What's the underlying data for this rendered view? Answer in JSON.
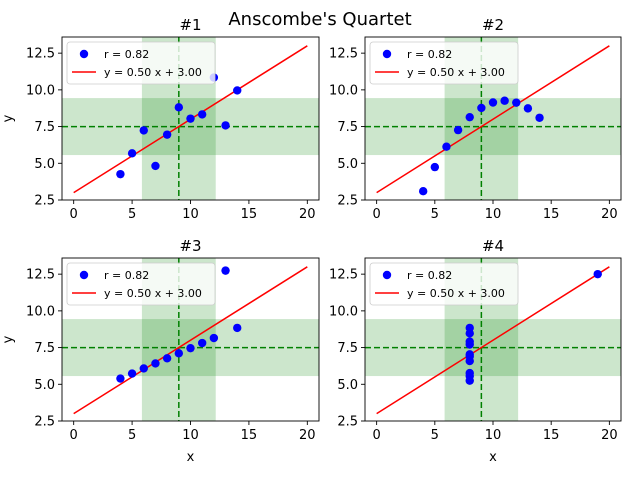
{
  "figure": {
    "suptitle": "Anscombe's Quartet"
  },
  "colors": {
    "points": "#0000ff",
    "fit_line": "#ff0000",
    "mean_lines": "#008000",
    "std_band": "#008000"
  },
  "chart_data": [
    {
      "type": "scatter",
      "title": "#1",
      "xlabel": "",
      "ylabel": "y",
      "xlim": [
        -1,
        21
      ],
      "ylim": [
        2.5,
        13.6
      ],
      "xticks": [
        0,
        5,
        10,
        15,
        20
      ],
      "yticks": [
        2.5,
        5.0,
        7.5,
        10.0,
        12.5
      ],
      "x": [
        10,
        8,
        13,
        9,
        11,
        14,
        6,
        4,
        12,
        7,
        5
      ],
      "y": [
        8.04,
        6.95,
        7.58,
        8.81,
        8.33,
        9.96,
        7.24,
        4.26,
        10.84,
        4.82,
        5.68
      ],
      "fit": {
        "slope": 0.5,
        "intercept": 3.0,
        "x_range": [
          0,
          20
        ]
      },
      "mean_x": 9.0,
      "std_x": 3.16,
      "mean_y": 7.5,
      "std_y": 1.94,
      "legend": [
        "r = 0.82",
        "y = 0.50 x + 3.00"
      ],
      "legend_loc": "upper left"
    },
    {
      "type": "scatter",
      "title": "#2",
      "xlabel": "",
      "ylabel": "",
      "xlim": [
        -1,
        21
      ],
      "ylim": [
        2.5,
        13.6
      ],
      "xticks": [
        0,
        5,
        10,
        15,
        20
      ],
      "yticks": [
        2.5,
        5.0,
        7.5,
        10.0,
        12.5
      ],
      "x": [
        10,
        8,
        13,
        9,
        11,
        14,
        6,
        4,
        12,
        7,
        5
      ],
      "y": [
        9.14,
        8.14,
        8.74,
        8.77,
        9.26,
        8.1,
        6.13,
        3.1,
        9.13,
        7.26,
        4.74
      ],
      "fit": {
        "slope": 0.5,
        "intercept": 3.0,
        "x_range": [
          0,
          20
        ]
      },
      "mean_x": 9.0,
      "std_x": 3.16,
      "mean_y": 7.5,
      "std_y": 1.94,
      "legend": [
        "r = 0.82",
        "y = 0.50 x + 3.00"
      ],
      "legend_loc": "upper left"
    },
    {
      "type": "scatter",
      "title": "#3",
      "xlabel": "x",
      "ylabel": "y",
      "xlim": [
        -1,
        21
      ],
      "ylim": [
        2.5,
        13.6
      ],
      "xticks": [
        0,
        5,
        10,
        15,
        20
      ],
      "yticks": [
        2.5,
        5.0,
        7.5,
        10.0,
        12.5
      ],
      "x": [
        10,
        8,
        13,
        9,
        11,
        14,
        6,
        4,
        12,
        7,
        5
      ],
      "y": [
        7.46,
        6.77,
        12.74,
        7.11,
        7.81,
        8.84,
        6.08,
        5.39,
        8.15,
        6.42,
        5.73
      ],
      "fit": {
        "slope": 0.5,
        "intercept": 3.0,
        "x_range": [
          0,
          20
        ]
      },
      "mean_x": 9.0,
      "std_x": 3.16,
      "mean_y": 7.5,
      "std_y": 1.94,
      "legend": [
        "r = 0.82",
        "y = 0.50 x + 3.00"
      ],
      "legend_loc": "upper left"
    },
    {
      "type": "scatter",
      "title": "#4",
      "xlabel": "x",
      "ylabel": "",
      "xlim": [
        -1,
        21
      ],
      "ylim": [
        2.5,
        13.6
      ],
      "xticks": [
        0,
        5,
        10,
        15,
        20
      ],
      "yticks": [
        2.5,
        5.0,
        7.5,
        10.0,
        12.5
      ],
      "x": [
        8,
        8,
        8,
        8,
        8,
        8,
        8,
        19,
        8,
        8,
        8
      ],
      "y": [
        6.58,
        5.76,
        7.71,
        8.84,
        8.47,
        7.04,
        5.25,
        12.5,
        5.56,
        7.91,
        6.89
      ],
      "fit": {
        "slope": 0.5,
        "intercept": 3.0,
        "x_range": [
          0,
          20
        ]
      },
      "mean_x": 9.0,
      "std_x": 3.16,
      "mean_y": 7.5,
      "std_y": 1.94,
      "legend": [
        "r = 0.82",
        "y = 0.50 x + 3.00"
      ],
      "legend_loc": "upper left"
    }
  ]
}
